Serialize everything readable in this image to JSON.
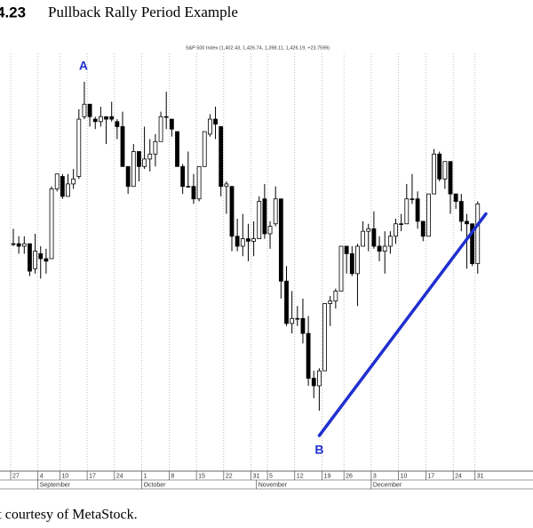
{
  "chart_data": {
    "type": "candlestick",
    "figure_number": "4.23",
    "title": "Pullback Rally Period Example",
    "subtitle": "S&P 500 Index (1,402.43, 1,426.74, 1,398.11, 1,426.19, +23.7599)",
    "caption": "rt courtesy of MetaStock.",
    "annotations": [
      "A",
      "B"
    ],
    "categories": [
      "27",
      null,
      null,
      null,
      null,
      "4",
      null,
      null,
      null,
      "10",
      null,
      null,
      null,
      null,
      "17",
      null,
      null,
      null,
      null,
      "24",
      null,
      null,
      null,
      null,
      "1",
      null,
      null,
      null,
      null,
      "8",
      null,
      null,
      null,
      null,
      "15",
      null,
      null,
      null,
      null,
      "22",
      null,
      null,
      null,
      null,
      "31",
      null,
      null,
      "5",
      null,
      null,
      null,
      null,
      "12",
      null,
      null,
      null,
      null,
      "19",
      null,
      null,
      null,
      "26",
      null,
      null,
      null,
      null,
      "3",
      null,
      null,
      null,
      null,
      "10",
      null,
      null,
      null,
      null,
      "17",
      null,
      null,
      null,
      null,
      "24",
      null,
      null,
      null,
      "31"
    ],
    "month_labels": [
      null,
      null,
      null,
      null,
      null,
      "September",
      null,
      null,
      null,
      null,
      null,
      null,
      null,
      null,
      null,
      null,
      null,
      null,
      null,
      null,
      null,
      null,
      null,
      null,
      "October",
      null,
      null,
      null,
      null,
      null,
      null,
      null,
      null,
      null,
      null,
      null,
      null,
      null,
      null,
      null,
      null,
      null,
      null,
      null,
      null,
      "November",
      null,
      null,
      null,
      null,
      null,
      null,
      null,
      null,
      null,
      null,
      null,
      null,
      null,
      null,
      null,
      null,
      null,
      null,
      null,
      null,
      "December",
      null,
      null,
      null,
      null,
      null,
      null,
      null,
      null,
      null,
      null,
      null,
      null,
      null,
      null,
      null,
      null,
      null,
      null,
      null
    ],
    "open": [
      1410,
      1410,
      1409,
      1410,
      1400,
      1406,
      1404,
      1404,
      1432,
      1437,
      1429,
      1434,
      1437,
      1461,
      1466,
      1460,
      1459,
      1461,
      1461,
      1459,
      1457,
      1441,
      1433,
      1447,
      1441,
      1444,
      1446,
      1451,
      1461,
      1460,
      1455,
      1441,
      1433,
      1433,
      1428,
      1441,
      1454,
      1460,
      1457,
      1433,
      1433,
      1413,
      1409,
      1412,
      1411,
      1412,
      1428,
      1414,
      1418,
      1428,
      1395,
      1378,
      1380,
      1380,
      1374,
      1356,
      1353,
      1359,
      1386,
      1387,
      1391,
      1409,
      1406,
      1398,
      1409,
      1415,
      1416,
      1409,
      1407,
      1409,
      1413,
      1418,
      1418,
      1428,
      1428,
      1419,
      1413,
      1430,
      1446,
      1436,
      1443,
      1430,
      1427,
      1419,
      1418,
      1402
    ],
    "high": [
      1416,
      1413,
      1413,
      1410,
      1414,
      1409,
      1408,
      1433,
      1438,
      1438,
      1438,
      1440,
      1464,
      1475,
      1466,
      1461,
      1465,
      1461,
      1467,
      1460,
      1463,
      1441,
      1450,
      1447,
      1457,
      1452,
      1454,
      1463,
      1471,
      1460,
      1455,
      1442,
      1447,
      1438,
      1441,
      1455,
      1462,
      1465,
      1457,
      1435,
      1433,
      1420,
      1422,
      1418,
      1419,
      1429,
      1434,
      1419,
      1433,
      1428,
      1401,
      1391,
      1385,
      1388,
      1381,
      1359,
      1360,
      1386,
      1389,
      1392,
      1409,
      1409,
      1409,
      1410,
      1419,
      1418,
      1423,
      1413,
      1415,
      1415,
      1420,
      1422,
      1434,
      1438,
      1431,
      1419,
      1430,
      1448,
      1447,
      1443,
      1443,
      1430,
      1430,
      1422,
      1418,
      1427
    ],
    "low": [
      1409,
      1406,
      1406,
      1397,
      1398,
      1396,
      1398,
      1404,
      1431,
      1428,
      1429,
      1432,
      1436,
      1460,
      1457,
      1456,
      1457,
      1450,
      1459,
      1452,
      1441,
      1430,
      1433,
      1435,
      1440,
      1439,
      1441,
      1451,
      1456,
      1453,
      1441,
      1430,
      1433,
      1426,
      1427,
      1441,
      1453,
      1452,
      1429,
      1422,
      1407,
      1407,
      1405,
      1403,
      1405,
      1412,
      1412,
      1408,
      1417,
      1388,
      1377,
      1374,
      1377,
      1370,
      1353,
      1348,
      1343,
      1359,
      1377,
      1384,
      1391,
      1398,
      1397,
      1385,
      1409,
      1407,
      1408,
      1403,
      1398,
      1406,
      1410,
      1415,
      1418,
      1426,
      1416,
      1411,
      1413,
      1430,
      1435,
      1432,
      1422,
      1424,
      1415,
      1400,
      1401,
      1398
    ],
    "close": [
      1410,
      1409,
      1410,
      1399,
      1407,
      1404,
      1403,
      1432,
      1438,
      1429,
      1434,
      1436,
      1460,
      1466,
      1461,
      1459,
      1461,
      1460,
      1460,
      1457,
      1441,
      1433,
      1447,
      1441,
      1444,
      1446,
      1451,
      1461,
      1461,
      1456,
      1441,
      1433,
      1433,
      1428,
      1441,
      1455,
      1460,
      1458,
      1433,
      1434,
      1413,
      1409,
      1412,
      1411,
      1412,
      1427,
      1414,
      1417,
      1428,
      1395,
      1378,
      1380,
      1380,
      1374,
      1356,
      1353,
      1359,
      1386,
      1387,
      1391,
      1409,
      1406,
      1398,
      1409,
      1415,
      1416,
      1409,
      1407,
      1409,
      1413,
      1418,
      1418,
      1428,
      1428,
      1419,
      1413,
      1430,
      1446,
      1436,
      1443,
      1430,
      1427,
      1419,
      1418,
      1402,
      1426
    ],
    "up_color": "#ffffff",
    "down_color": "#000000",
    "trendline": {
      "color": "#1f2fd0",
      "values": [
        1333,
        1422
      ]
    },
    "grid": true
  }
}
